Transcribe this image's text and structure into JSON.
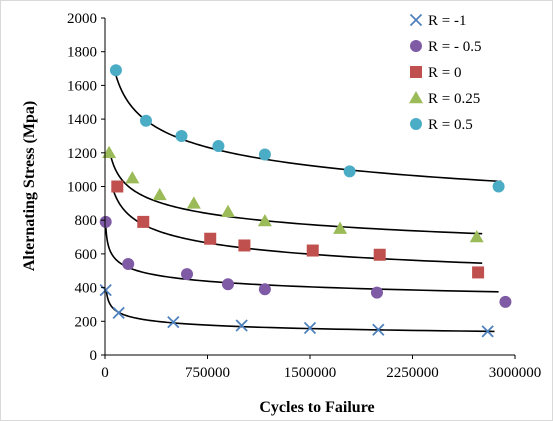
{
  "chart_data": {
    "type": "scatter",
    "xlabel": "Cycles to Failure",
    "ylabel": "Alternating Stress (Mpa)",
    "xlim": [
      0,
      3000000
    ],
    "ylim": [
      0,
      2000
    ],
    "x_ticks": [
      0,
      750000,
      1500000,
      2250000,
      3000000
    ],
    "x_tick_labels": [
      "0",
      "750000",
      "1500000",
      "2250000",
      "3000000"
    ],
    "y_ticks": [
      0,
      200,
      400,
      600,
      800,
      1000,
      1200,
      1400,
      1600,
      1800,
      2000
    ],
    "y_tick_labels": [
      "0",
      "200",
      "400",
      "600",
      "800",
      "1000",
      "1200",
      "1400",
      "1600",
      "1800",
      "2000"
    ],
    "grid": false,
    "legend_position": "top-right",
    "series": [
      {
        "name": "R = -1",
        "marker": "cross",
        "color": "#4f81bd",
        "x": [
          5000,
          100000,
          500000,
          1000000,
          1500000,
          2000000,
          2800000
        ],
        "y": [
          385,
          250,
          195,
          175,
          160,
          150,
          140
        ]
      },
      {
        "name": "R = - 0.5",
        "marker": "circle",
        "color": "#7f5ba5",
        "x": [
          5000,
          170000,
          600000,
          900000,
          1170000,
          1990000,
          2930000
        ],
        "y": [
          790,
          540,
          480,
          420,
          390,
          370,
          315
        ]
      },
      {
        "name": "R = 0",
        "marker": "square",
        "color": "#c0504d",
        "x": [
          90000,
          280000,
          770000,
          1020000,
          1520000,
          2010000,
          2730000
        ],
        "y": [
          1000,
          790,
          690,
          650,
          620,
          595,
          490
        ]
      },
      {
        "name": "R = 0.25",
        "marker": "triangle",
        "color": "#9bbb59",
        "x": [
          30000,
          200000,
          400000,
          650000,
          900000,
          1170000,
          1720000,
          2720000
        ],
        "y": [
          1200,
          1050,
          950,
          900,
          850,
          795,
          750,
          700
        ]
      },
      {
        "name": "R = 0.5",
        "marker": "circle",
        "color": "#4bacc6",
        "x": [
          80000,
          300000,
          560000,
          830000,
          1170000,
          1790000,
          2880000
        ],
        "y": [
          1690,
          1390,
          1300,
          1240,
          1190,
          1090,
          1000
        ]
      }
    ],
    "trendlines": [
      {
        "x0": 10000,
        "x1": 2850000,
        "y0": 380,
        "y1": 140
      },
      {
        "x0": 5000,
        "x1": 2880000,
        "y0": 780,
        "y1": 375
      },
      {
        "x0": 60000,
        "x1": 2760000,
        "y0": 980,
        "y1": 545
      },
      {
        "x0": 30000,
        "x1": 2760000,
        "y0": 1230,
        "y1": 720
      },
      {
        "x0": 80000,
        "x1": 2900000,
        "y0": 1660,
        "y1": 1030
      }
    ]
  }
}
